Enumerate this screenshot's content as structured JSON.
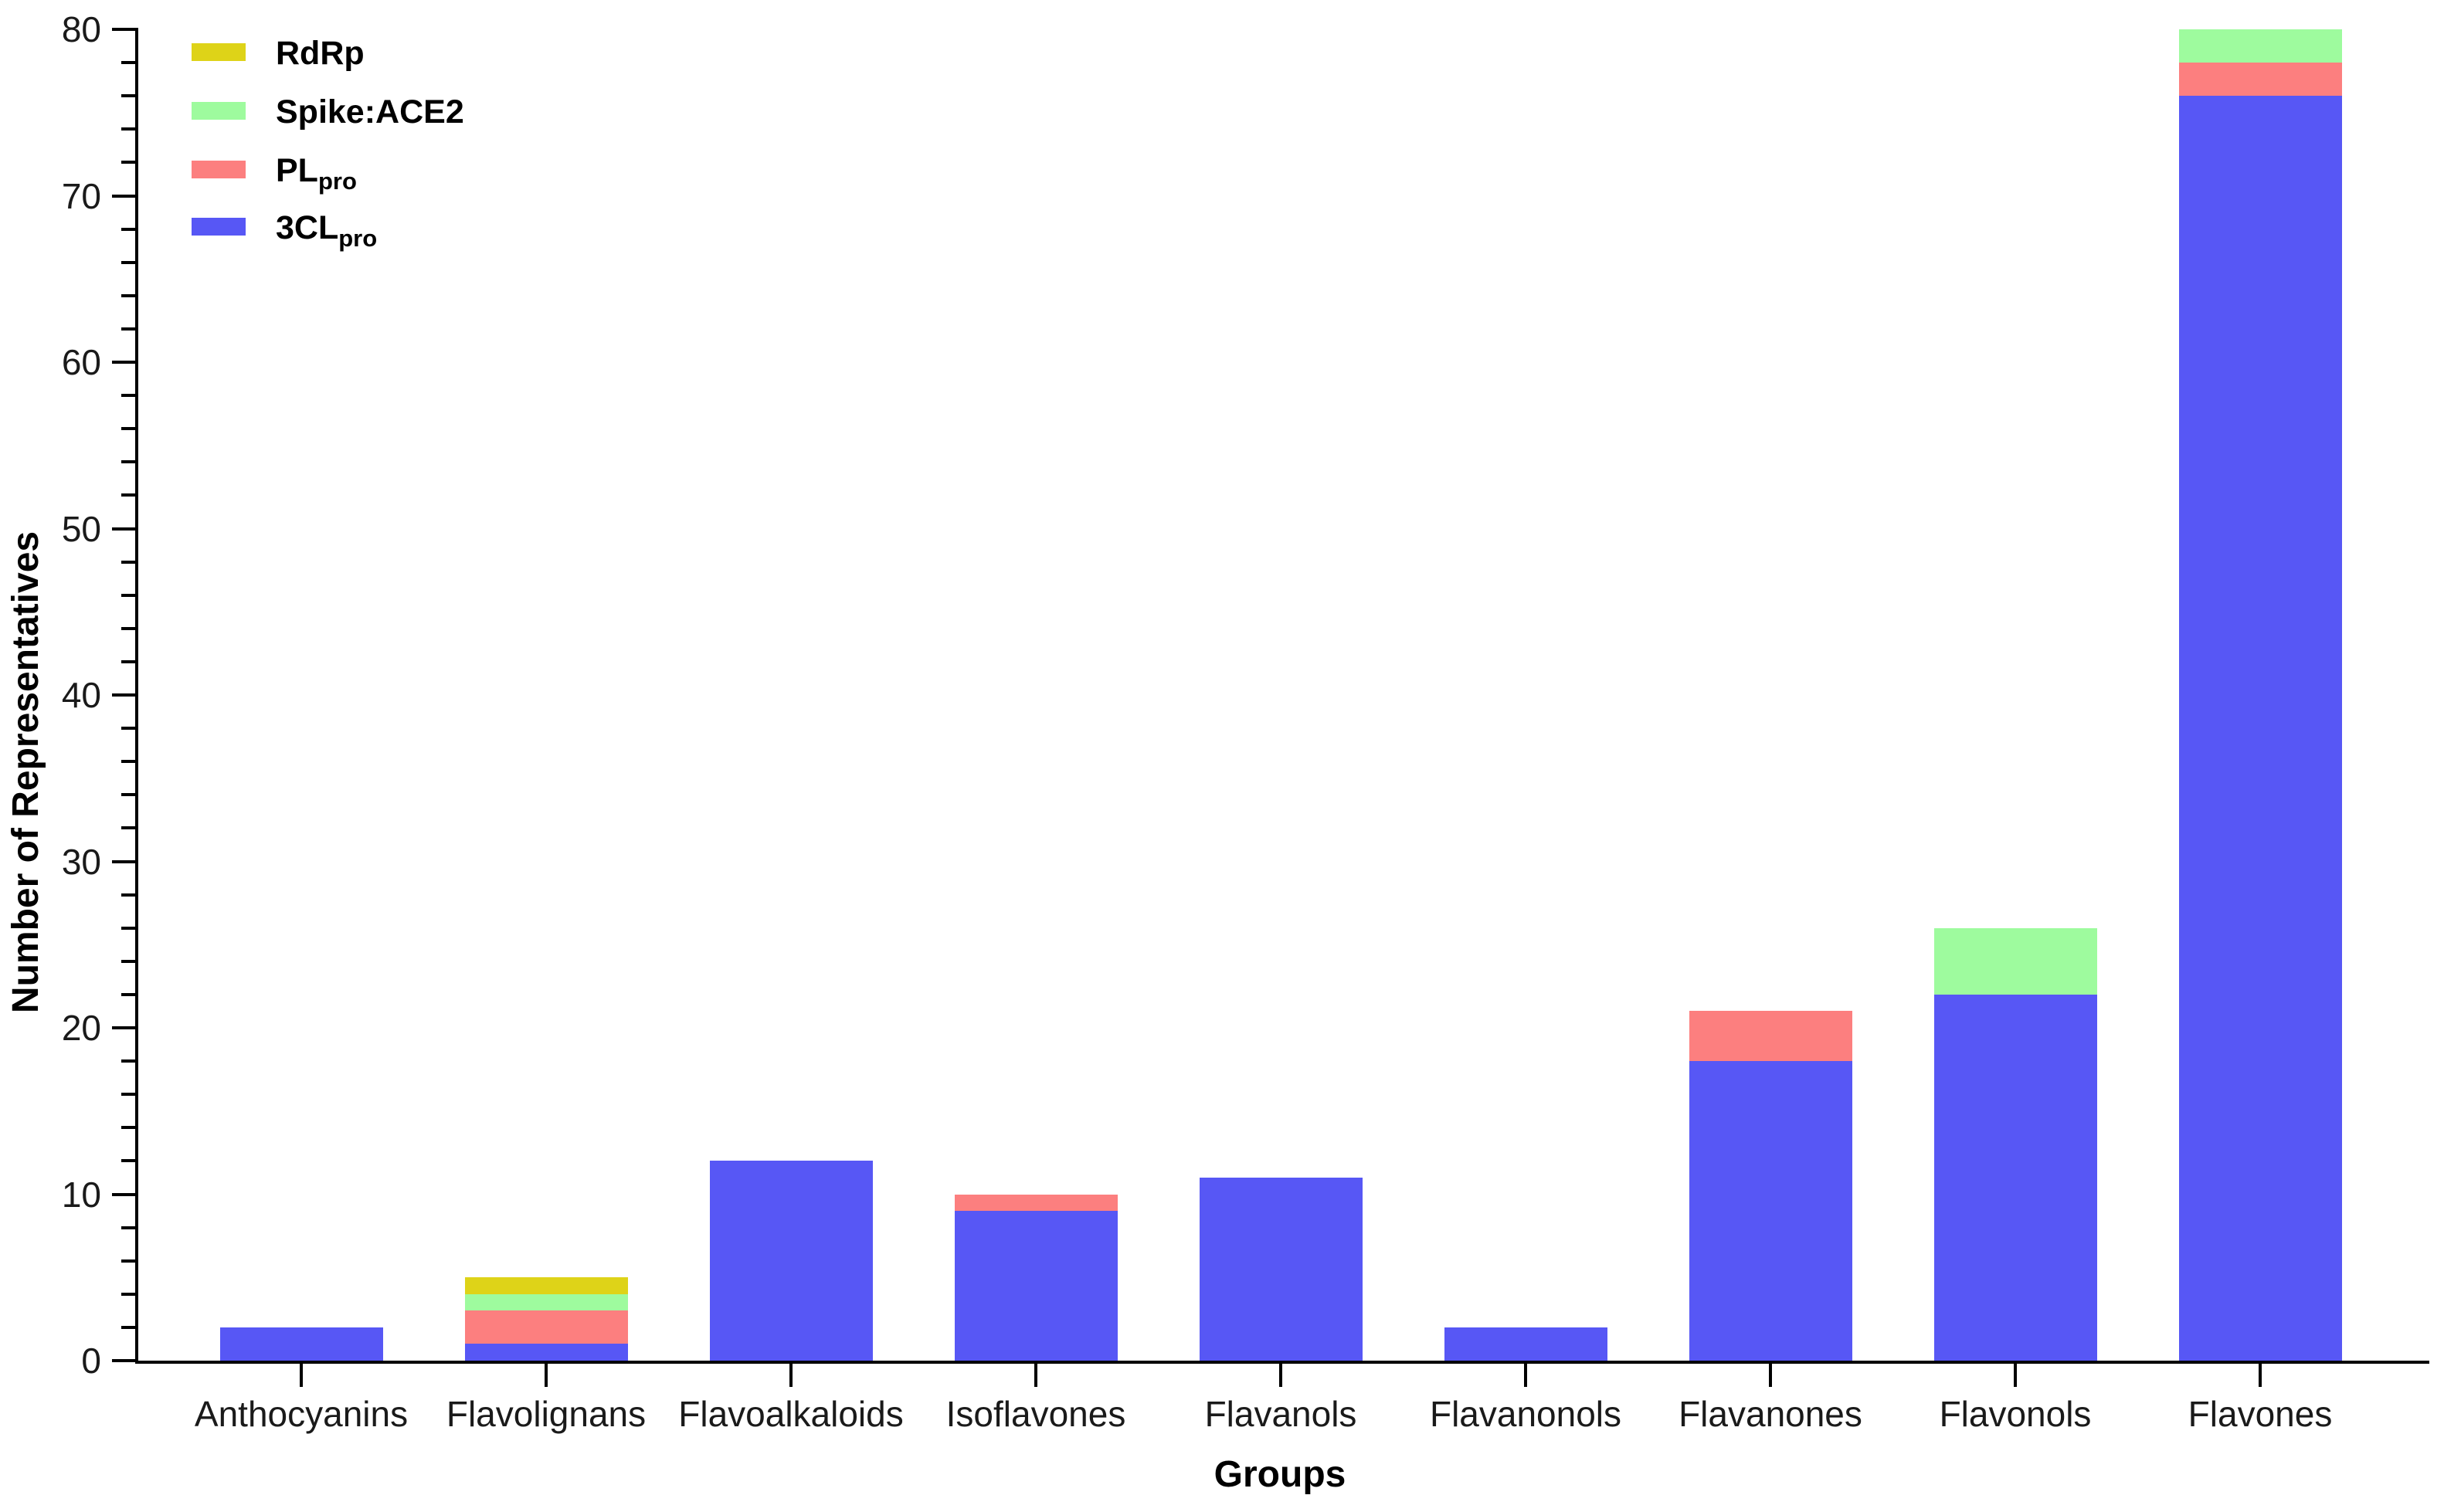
{
  "chart_data": {
    "type": "bar",
    "stacked": true,
    "xlabel": "Groups",
    "ylabel": "Number of Representatives",
    "categories": [
      "Anthocyanins",
      "Flavolignans",
      "Flavoalkaloids",
      "Isoflavones",
      "Flavanols",
      "Flavanonols",
      "Flavanones",
      "Flavonols",
      "Flavones"
    ],
    "series": [
      {
        "name": "3CLpro",
        "label_main": "3CL",
        "label_sub": "pro",
        "color": "#5757F5",
        "values": [
          2,
          1,
          12,
          9,
          11,
          2,
          18,
          22,
          76
        ]
      },
      {
        "name": "PLpro",
        "label_main": "PL",
        "label_sub": "pro",
        "color": "#FC7F7F",
        "values": [
          0,
          2,
          0,
          1,
          0,
          0,
          3,
          0,
          2
        ]
      },
      {
        "name": "Spike:ACE2",
        "label_main": "Spike:ACE2",
        "label_sub": "",
        "color": "#9EFB9E",
        "values": [
          0,
          1,
          0,
          0,
          0,
          0,
          0,
          4,
          2
        ]
      },
      {
        "name": "RdRp",
        "label_main": "RdRp",
        "label_sub": "",
        "color": "#DED318",
        "values": [
          0,
          1,
          0,
          0,
          0,
          0,
          0,
          0,
          0
        ]
      }
    ],
    "bar_totals": [
      2,
      5,
      12,
      10,
      11,
      2,
      21,
      26,
      80
    ],
    "stack_order_bottom_to_top": [
      "3CLpro",
      "PLpro",
      "Spike:ACE2",
      "RdRp"
    ],
    "legend_order_top_to_bottom": [
      "RdRp",
      "Spike:ACE2",
      "PLpro",
      "3CLpro"
    ],
    "legend_position": "top-left",
    "ylim": [
      0,
      80
    ],
    "y_major_tick": 10,
    "y_minor_tick": 2,
    "y_tick_labels": [
      "0",
      "10",
      "20",
      "30",
      "40",
      "50",
      "60",
      "70",
      "80"
    ],
    "grid": false,
    "axis_color": "#000000"
  }
}
